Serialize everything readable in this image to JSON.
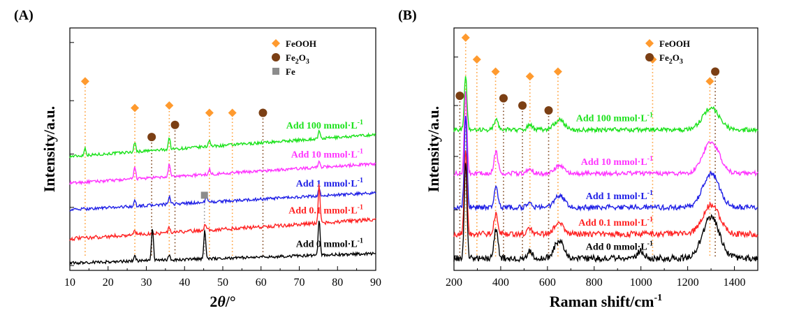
{
  "chart_data": [
    {
      "id": "A",
      "panel_label": "(A)",
      "type": "line",
      "xlabel_main": "2",
      "xlabel_italic": "θ",
      "xlabel_unit": "/°",
      "ylabel": "Intensity/a.u.",
      "xlim": [
        10,
        90
      ],
      "xticks": [
        10,
        20,
        30,
        40,
        50,
        60,
        70,
        80,
        90
      ],
      "legend": {
        "position": "top-right",
        "entries": [
          {
            "marker": "diamond",
            "color": "#ff9a2e",
            "label": "FeOOH"
          },
          {
            "marker": "circle",
            "color": "#7b3f14",
            "label": "Fe",
            "sub": "2",
            "tail": "O",
            "sub2": "3"
          },
          {
            "marker": "square",
            "color": "#8c8c8c",
            "label": "Fe"
          }
        ]
      },
      "series": [
        {
          "label_prefix": "Add 100 mmol·L",
          "label_sup": "-1",
          "color": "#1ce21c",
          "baseline": [
            10,
            0.47,
            90,
            0.56
          ],
          "noise": 0.004,
          "peaks": [
            [
              14,
              0.03
            ],
            [
              27,
              0.04
            ],
            [
              36,
              0.05
            ],
            [
              46.5,
              0.03
            ],
            [
              75.2,
              0.03
            ]
          ]
        },
        {
          "label_prefix": "Add 10 mmol·L",
          "label_sup": "-1",
          "color": "#ff33ff",
          "baseline": [
            10,
            0.36,
            90,
            0.44
          ],
          "noise": 0.004,
          "peaks": [
            [
              27,
              0.05
            ],
            [
              36,
              0.05
            ],
            [
              46.5,
              0.02
            ],
            [
              75.2,
              0.03
            ]
          ]
        },
        {
          "label_prefix": "Add 1 mmol·L",
          "label_sup": "-1",
          "color": "#2020e6",
          "baseline": [
            10,
            0.25,
            90,
            0.32
          ],
          "noise": 0.004,
          "peaks": [
            [
              27,
              0.02
            ],
            [
              36,
              0.03
            ],
            [
              45.8,
              0.03
            ],
            [
              75.2,
              0.03
            ]
          ]
        },
        {
          "label_prefix": "Add 0.1 mmol·L",
          "label_sup": "-1",
          "color": "#ff2222",
          "baseline": [
            10,
            0.13,
            90,
            0.21
          ],
          "noise": 0.005,
          "peaks": [
            [
              27,
              0.02
            ],
            [
              36,
              0.02
            ],
            [
              45.4,
              0.03
            ],
            [
              75.2,
              0.16
            ]
          ]
        },
        {
          "label_prefix": "Add 0 mmol·L",
          "label_sup": "-1",
          "color": "#000000",
          "baseline": [
            10,
            0.03,
            90,
            0.07
          ],
          "noise": 0.004,
          "peaks": [
            [
              27,
              0.02
            ],
            [
              31.6,
              0.14
            ],
            [
              36,
              0.02
            ],
            [
              45.3,
              0.12
            ],
            [
              75.2,
              0.15
            ]
          ]
        }
      ],
      "markers": [
        {
          "type": "diamond",
          "x": 14,
          "top": 0.78
        },
        {
          "type": "diamond",
          "x": 27,
          "top": 0.67
        },
        {
          "type": "diamond",
          "x": 36,
          "top": 0.68
        },
        {
          "type": "diamond",
          "x": 46.5,
          "top": 0.65
        },
        {
          "type": "diamond",
          "x": 52.5,
          "top": 0.65
        },
        {
          "type": "circle",
          "x": 31.4,
          "top": 0.55
        },
        {
          "type": "circle",
          "x": 37.5,
          "top": 0.6
        },
        {
          "type": "circle",
          "x": 60.5,
          "top": 0.65
        },
        {
          "type": "square",
          "x": 45.2,
          "top": 0.31
        }
      ]
    },
    {
      "id": "B",
      "panel_label": "(B)",
      "type": "line",
      "xlabel_main": "Raman shift/cm",
      "xlabel_sup": "-1",
      "ylabel": "Intensity/a.u.",
      "xlim": [
        200,
        1500
      ],
      "xticks": [
        200,
        400,
        600,
        800,
        1000,
        1200,
        1400
      ],
      "legend": {
        "position": "top-right",
        "entries": [
          {
            "marker": "diamond",
            "color": "#ff9a2e",
            "label": "FeOOH"
          },
          {
            "marker": "circle",
            "color": "#7b3f14",
            "label": "Fe",
            "sub": "2",
            "tail": "O",
            "sub2": "3"
          }
        ]
      },
      "series": [
        {
          "label_prefix": "Add 100 mmol·L",
          "label_sup": "-1",
          "color": "#1ce21c",
          "baseline": [
            200,
            0.58,
            1500,
            0.58
          ],
          "noise": 0.006,
          "peaks": [
            [
              250,
              0.22,
              8
            ],
            [
              380,
              0.04,
              12
            ],
            [
              525,
              0.02,
              15
            ],
            [
              650,
              0.04,
              30
            ],
            [
              1300,
              0.09,
              50
            ]
          ]
        },
        {
          "label_prefix": "Add 10 mmol·L",
          "label_sup": "-1",
          "color": "#ff33ff",
          "baseline": [
            200,
            0.4,
            1500,
            0.4
          ],
          "noise": 0.006,
          "peaks": [
            [
              250,
              0.34,
              8
            ],
            [
              380,
              0.09,
              12
            ],
            [
              525,
              0.02,
              15
            ],
            [
              650,
              0.03,
              30
            ],
            [
              1300,
              0.13,
              50
            ]
          ]
        },
        {
          "label_prefix": "Add 1 mmol·L",
          "label_sup": "-1",
          "color": "#2020e6",
          "baseline": [
            200,
            0.26,
            1500,
            0.26
          ],
          "noise": 0.007,
          "peaks": [
            [
              250,
              0.38,
              8
            ],
            [
              380,
              0.08,
              12
            ],
            [
              525,
              0.02,
              15
            ],
            [
              650,
              0.05,
              30
            ],
            [
              1300,
              0.14,
              50
            ]
          ]
        },
        {
          "label_prefix": "Add 0.1 mmol·L",
          "label_sup": "-1",
          "color": "#ff2222",
          "baseline": [
            200,
            0.15,
            1500,
            0.15
          ],
          "noise": 0.008,
          "peaks": [
            [
              250,
              0.35,
              8
            ],
            [
              380,
              0.08,
              12
            ],
            [
              525,
              0.02,
              15
            ],
            [
              650,
              0.04,
              30
            ],
            [
              1300,
              0.12,
              50
            ]
          ]
        },
        {
          "label_prefix": "Add 0 mmol·L",
          "label_sup": "-1",
          "color": "#000000",
          "baseline": [
            200,
            0.05,
            1500,
            0.05
          ],
          "noise": 0.009,
          "peaks": [
            [
              250,
              0.4,
              8
            ],
            [
              380,
              0.12,
              12
            ],
            [
              525,
              0.03,
              15
            ],
            [
              650,
              0.07,
              30
            ],
            [
              1000,
              0.03,
              20
            ],
            [
              1300,
              0.17,
              50
            ]
          ]
        }
      ],
      "markers": [
        {
          "type": "diamond",
          "x": 250,
          "top": 0.96
        },
        {
          "type": "diamond",
          "x": 298,
          "top": 0.87
        },
        {
          "type": "diamond",
          "x": 378,
          "top": 0.82
        },
        {
          "type": "diamond",
          "x": 525,
          "top": 0.8
        },
        {
          "type": "diamond",
          "x": 645,
          "top": 0.82
        },
        {
          "type": "diamond",
          "x": 1050,
          "top": 0.87
        },
        {
          "type": "diamond",
          "x": 1295,
          "top": 0.78
        },
        {
          "type": "circle",
          "x": 225,
          "top": 0.72
        },
        {
          "type": "circle",
          "x": 412,
          "top": 0.71
        },
        {
          "type": "circle",
          "x": 493,
          "top": 0.68
        },
        {
          "type": "circle",
          "x": 605,
          "top": 0.66
        },
        {
          "type": "circle",
          "x": 1318,
          "top": 0.82
        }
      ]
    }
  ]
}
